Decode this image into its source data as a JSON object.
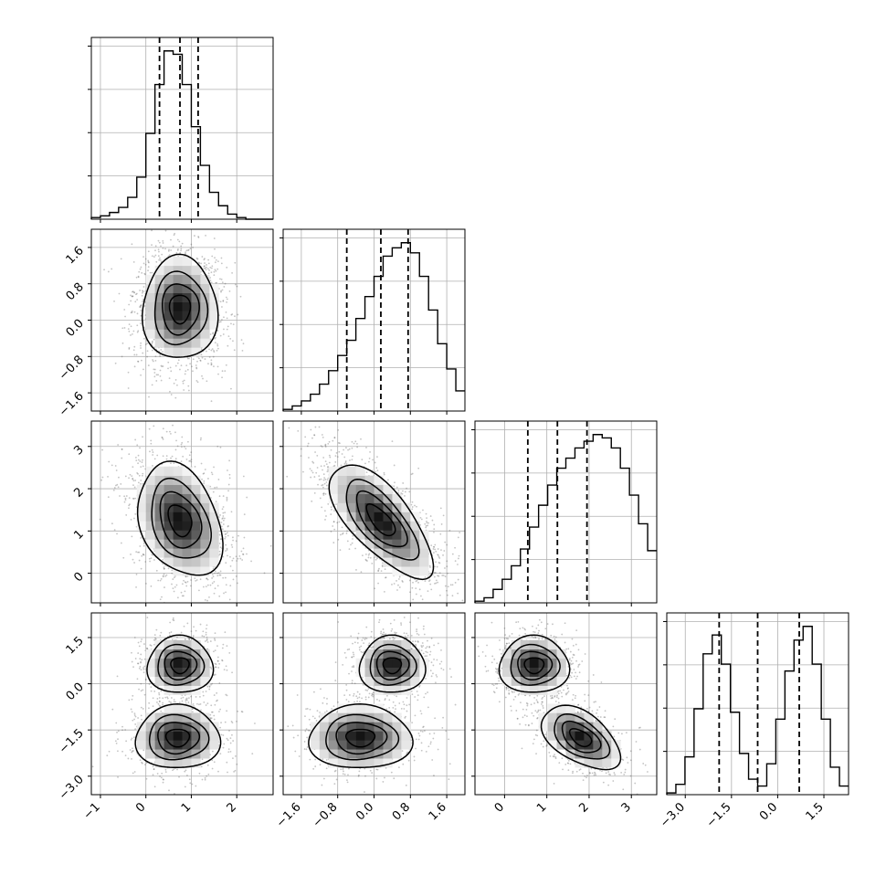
{
  "chart_data": {
    "type": "corner",
    "n_params": 4,
    "grid": true,
    "colors": {
      "line": "#000000",
      "grid": "#b0b0b0",
      "scatter": "#555555",
      "density": "#000000"
    },
    "params": [
      {
        "range": [
          -1.2,
          2.8
        ],
        "ticks": [
          -1,
          0,
          1,
          2
        ],
        "tick_labels": [
          "−1",
          "0",
          "1",
          "2"
        ],
        "quantiles": [
          0.3,
          0.75,
          1.15
        ]
      },
      {
        "range": [
          -2.0,
          2.0
        ],
        "ticks": [
          -1.6,
          -0.8,
          0.0,
          0.8,
          1.6
        ],
        "tick_labels": [
          "−1.6",
          "−0.8",
          "0.0",
          "0.8",
          "1.6"
        ],
        "quantiles": [
          -0.6,
          0.15,
          0.75
        ]
      },
      {
        "range": [
          -0.7,
          3.6
        ],
        "ticks": [
          0,
          1,
          2,
          3
        ],
        "tick_labels": [
          "0",
          "1",
          "2",
          "3"
        ],
        "quantiles": [
          0.55,
          1.25,
          1.95
        ]
      },
      {
        "range": [
          -3.6,
          2.3
        ],
        "ticks": [
          -3.0,
          -1.5,
          0.0,
          1.5
        ],
        "tick_labels": [
          "−3.0",
          "−1.5",
          "0.0",
          "1.5"
        ],
        "quantiles": [
          -1.9,
          -0.65,
          0.7
        ]
      }
    ],
    "histograms": [
      {
        "param": 0,
        "edges_start": -1.2,
        "bin_width": 0.2,
        "counts": [
          1,
          2,
          4,
          7,
          13,
          25,
          51,
          80,
          100,
          98,
          80,
          55,
          32,
          16,
          8,
          3,
          1,
          0,
          0,
          0
        ]
      },
      {
        "param": 1,
        "edges_start": -2.0,
        "bin_width": 0.2,
        "counts": [
          1,
          3,
          6,
          10,
          16,
          24,
          33,
          42,
          55,
          68,
          80,
          92,
          97,
          100,
          94,
          80,
          60,
          40,
          25,
          12
        ]
      },
      {
        "param": 2,
        "edges_start": -0.7,
        "bin_width": 0.215,
        "counts": [
          1,
          3,
          8,
          14,
          22,
          32,
          45,
          58,
          70,
          80,
          86,
          92,
          96,
          100,
          98,
          92,
          80,
          64,
          47,
          31
        ]
      },
      {
        "param": 3,
        "edges_start": -3.6,
        "bin_width": 0.295,
        "counts": [
          1,
          6,
          22,
          50,
          82,
          93,
          76,
          48,
          24,
          9,
          5,
          18,
          44,
          72,
          90,
          98,
          76,
          44,
          16,
          5
        ]
      }
    ],
    "pairs": [
      {
        "x_param": 0,
        "y_param": 1,
        "modes": [
          {
            "mx": 0.75,
            "my": 0.25,
            "sx": 0.4,
            "sy": 0.55,
            "rho": 0.0,
            "w": 1.0
          }
        ]
      },
      {
        "x_param": 0,
        "y_param": 2,
        "modes": [
          {
            "mx": 0.75,
            "my": 1.25,
            "sx": 0.45,
            "sy": 0.65,
            "rho": -0.3,
            "w": 1.0
          }
        ]
      },
      {
        "x_param": 1,
        "y_param": 2,
        "modes": [
          {
            "mx": 0.15,
            "my": 1.25,
            "sx": 0.55,
            "sy": 0.65,
            "rho": -0.7,
            "w": 1.0
          }
        ]
      },
      {
        "x_param": 0,
        "y_param": 3,
        "modes": [
          {
            "mx": 0.75,
            "my": 0.6,
            "sx": 0.35,
            "sy": 0.45,
            "rho": 0.0,
            "w": 0.5
          },
          {
            "mx": 0.7,
            "my": -1.75,
            "sx": 0.45,
            "sy": 0.5,
            "rho": 0.0,
            "w": 0.5
          }
        ]
      },
      {
        "x_param": 1,
        "y_param": 3,
        "modes": [
          {
            "mx": 0.4,
            "my": 0.6,
            "sx": 0.35,
            "sy": 0.45,
            "rho": 0.0,
            "w": 0.5
          },
          {
            "mx": -0.3,
            "my": -1.75,
            "sx": 0.55,
            "sy": 0.5,
            "rho": 0.0,
            "w": 0.5
          }
        ]
      },
      {
        "x_param": 2,
        "y_param": 3,
        "modes": [
          {
            "mx": 0.7,
            "my": 0.6,
            "sx": 0.4,
            "sy": 0.45,
            "rho": 0.0,
            "w": 0.5
          },
          {
            "mx": 1.8,
            "my": -1.75,
            "sx": 0.45,
            "sy": 0.5,
            "rho": -0.5,
            "w": 0.5
          }
        ]
      }
    ],
    "contour_levels": [
      0.85,
      0.6,
      0.35,
      0.12
    ]
  }
}
